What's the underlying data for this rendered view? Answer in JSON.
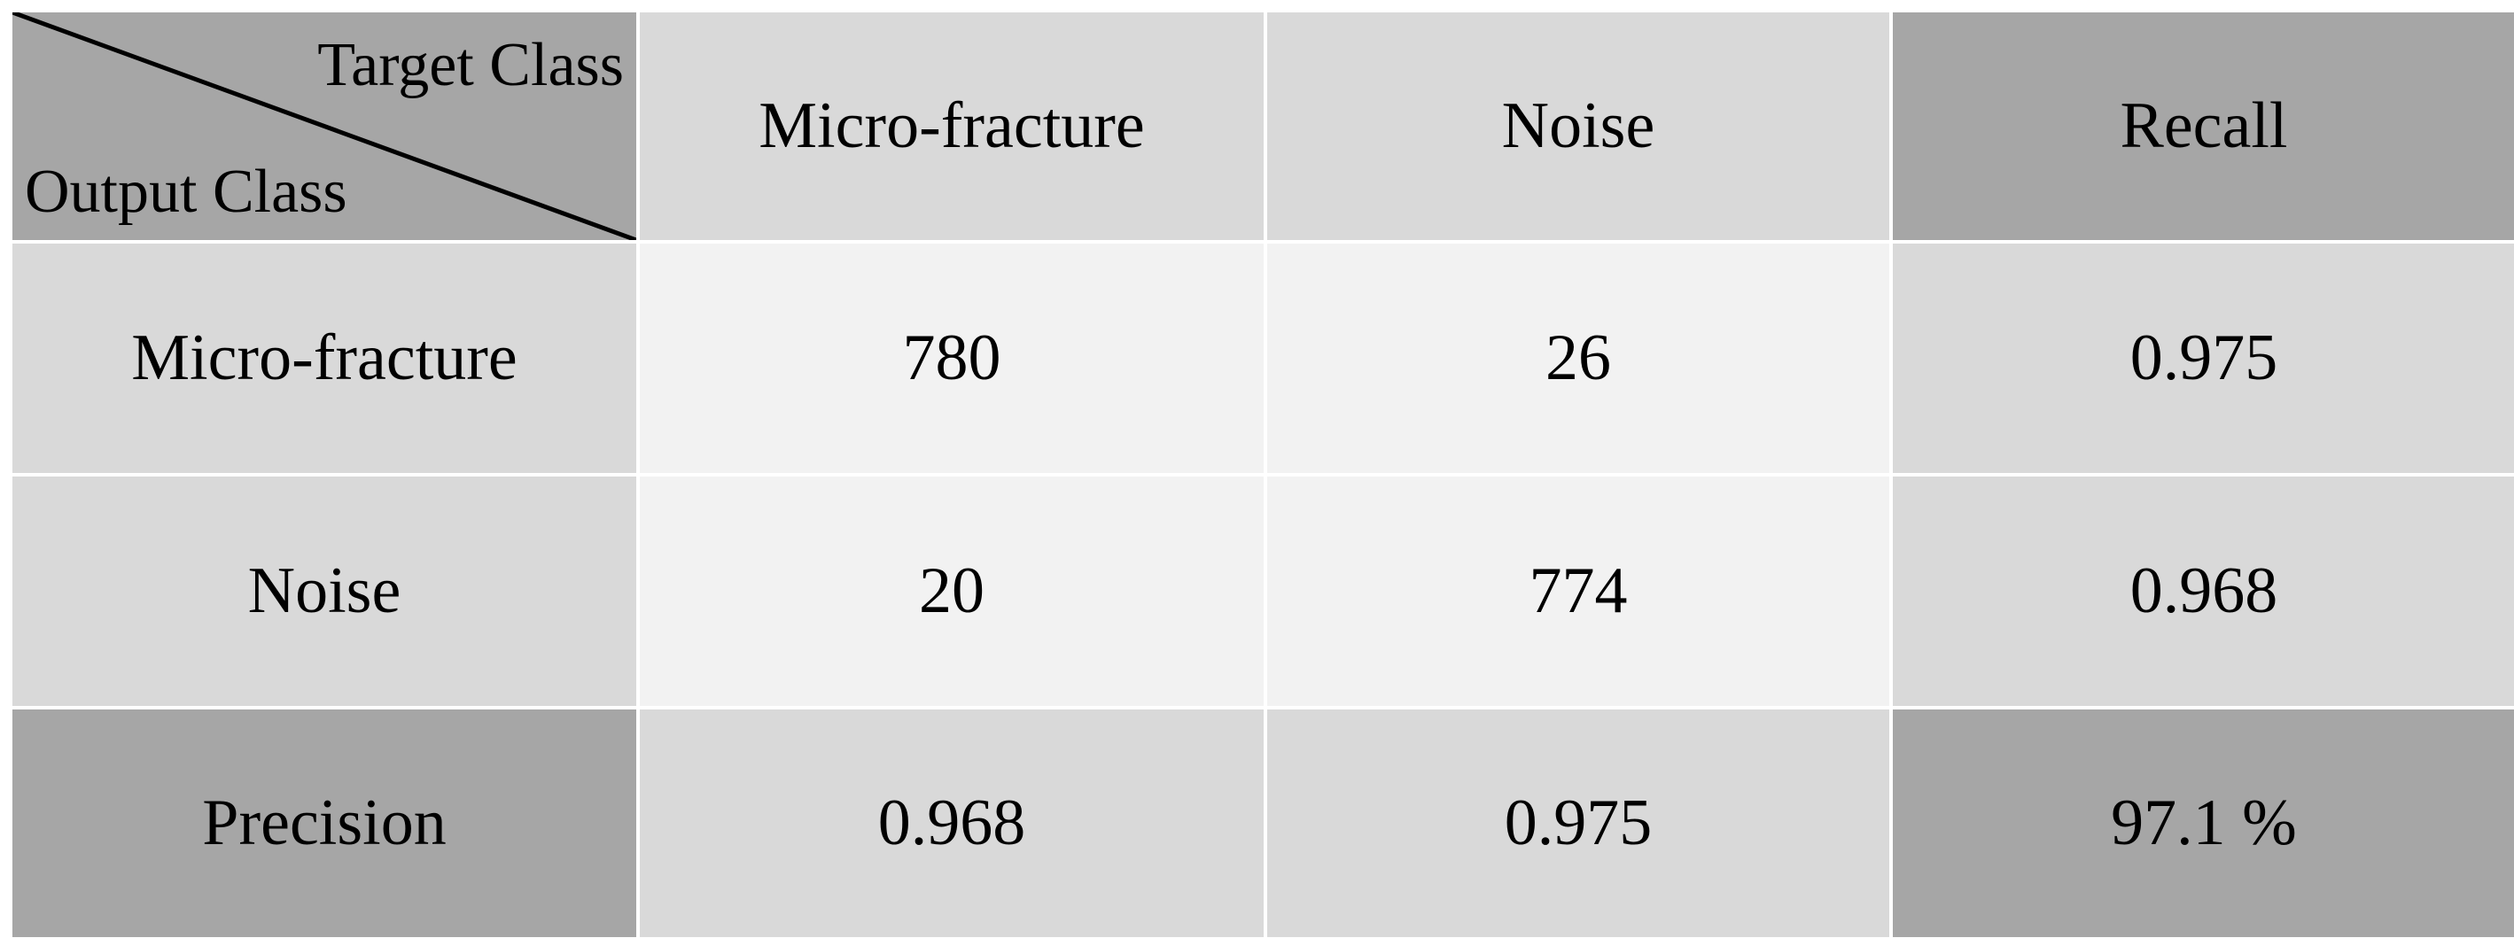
{
  "table": {
    "corner": {
      "top": "Target Class",
      "bottom": "Output Class"
    },
    "header": [
      "Micro-fracture",
      "Noise",
      "Recall"
    ],
    "rows": [
      [
        "Micro-fracture",
        780,
        26,
        0.975
      ],
      [
        "Noise",
        20,
        774,
        0.968
      ],
      [
        "Precision",
        0.968,
        0.975,
        "97.1 %"
      ]
    ]
  }
}
